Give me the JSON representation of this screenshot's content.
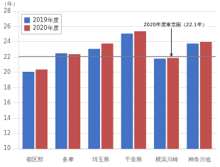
{
  "chart_data": {
    "type": "bar",
    "categories": [
      "都区部",
      "多摩",
      "埼玉県",
      "千葉県",
      "横浜川崎",
      "神奈川他"
    ],
    "series": [
      {
        "name": "2019年度",
        "color": "#4472c4",
        "values": [
          20.1,
          22.5,
          23.1,
          25.1,
          21.8,
          23.8
        ]
      },
      {
        "name": "2020年度",
        "color": "#c0504d",
        "values": [
          20.4,
          22.4,
          23.8,
          25.4,
          21.9,
          24.0
        ]
      }
    ],
    "ylabel": "（年）",
    "ylim": [
      10.0,
      28.0
    ],
    "yticks": [
      10.0,
      12.0,
      14.0,
      16.0,
      18.0,
      20.0,
      22.0,
      24.0,
      26.0,
      28.0
    ],
    "reference_line": {
      "value": 22.1,
      "label": "2020年度東京圏（22.1年）"
    },
    "grid": true,
    "legend": "upper left"
  }
}
